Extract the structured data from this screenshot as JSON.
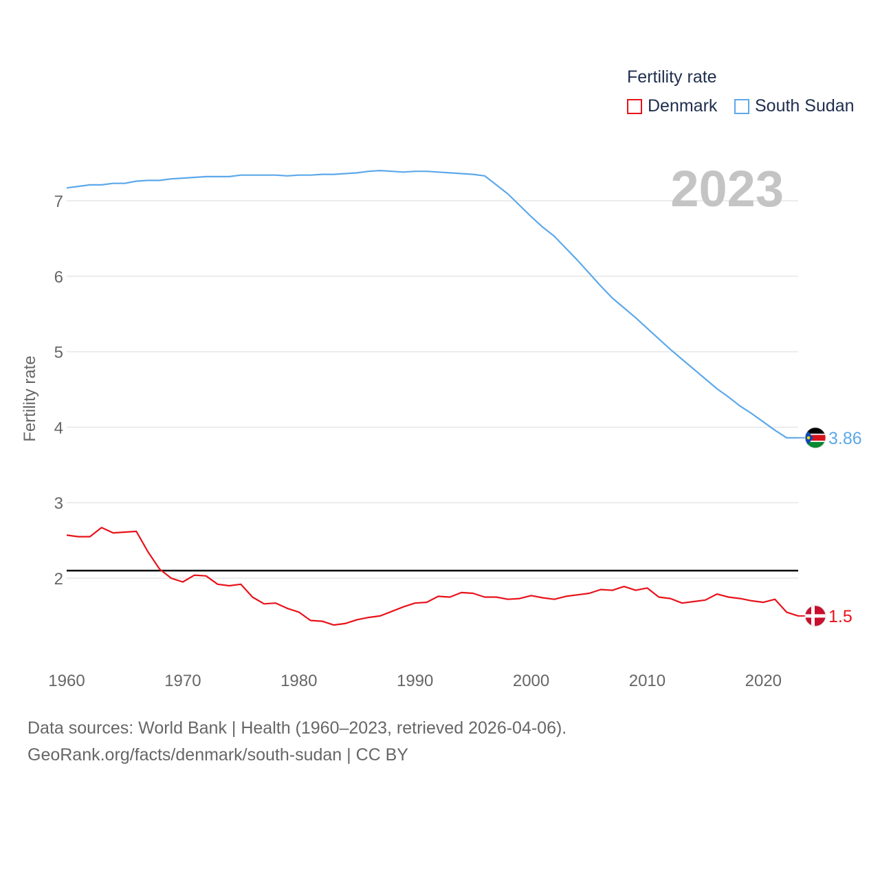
{
  "legend": {
    "title": "Fertility rate",
    "items": [
      {
        "label": "Denmark",
        "color": "#e8111a"
      },
      {
        "label": "South Sudan",
        "color": "#5ca8ea"
      }
    ]
  },
  "year_label": "2023",
  "source": {
    "line1": "Data sources: World Bank | Health (1960–2023, retrieved 2026-04-06).",
    "line2": "GeoRank.org/facts/denmark/south-sudan | CC BY"
  },
  "chart_data": {
    "type": "line",
    "title": "Fertility rate",
    "xlabel": "",
    "ylabel": "Fertility rate",
    "xlim": [
      1960,
      2023
    ],
    "ylim": [
      1,
      7.5
    ],
    "x_ticks": [
      1960,
      1970,
      1980,
      1990,
      2000,
      2010,
      2020
    ],
    "y_ticks": [
      2,
      3,
      4,
      5,
      6,
      7
    ],
    "reference_line": {
      "y": 2.1,
      "color": "#000000"
    },
    "x": [
      1960,
      1961,
      1962,
      1963,
      1964,
      1965,
      1966,
      1967,
      1968,
      1969,
      1970,
      1971,
      1972,
      1973,
      1974,
      1975,
      1976,
      1977,
      1978,
      1979,
      1980,
      1981,
      1982,
      1983,
      1984,
      1985,
      1986,
      1987,
      1988,
      1989,
      1990,
      1991,
      1992,
      1993,
      1994,
      1995,
      1996,
      1997,
      1998,
      1999,
      2000,
      2001,
      2002,
      2003,
      2004,
      2005,
      2006,
      2007,
      2008,
      2009,
      2010,
      2011,
      2012,
      2013,
      2014,
      2015,
      2016,
      2017,
      2018,
      2019,
      2020,
      2021,
      2022,
      2023
    ],
    "series": [
      {
        "name": "Denmark",
        "color": "#e8111a",
        "end_label": "1.5",
        "values": [
          2.57,
          2.55,
          2.55,
          2.67,
          2.6,
          2.61,
          2.62,
          2.35,
          2.12,
          2.0,
          1.95,
          2.04,
          2.03,
          1.92,
          1.9,
          1.92,
          1.75,
          1.66,
          1.67,
          1.6,
          1.55,
          1.44,
          1.43,
          1.38,
          1.4,
          1.45,
          1.48,
          1.5,
          1.56,
          1.62,
          1.67,
          1.68,
          1.76,
          1.75,
          1.81,
          1.8,
          1.75,
          1.75,
          1.72,
          1.73,
          1.77,
          1.74,
          1.72,
          1.76,
          1.78,
          1.8,
          1.85,
          1.84,
          1.89,
          1.84,
          1.87,
          1.75,
          1.73,
          1.67,
          1.69,
          1.71,
          1.79,
          1.75,
          1.73,
          1.7,
          1.68,
          1.72,
          1.55,
          1.5
        ]
      },
      {
        "name": "South Sudan",
        "color": "#5ca8ea",
        "end_label": "3.86",
        "values": [
          7.17,
          7.19,
          7.21,
          7.21,
          7.23,
          7.23,
          7.26,
          7.27,
          7.27,
          7.29,
          7.3,
          7.31,
          7.32,
          7.32,
          7.32,
          7.34,
          7.34,
          7.34,
          7.34,
          7.33,
          7.34,
          7.34,
          7.35,
          7.35,
          7.36,
          7.37,
          7.39,
          7.4,
          7.39,
          7.38,
          7.39,
          7.39,
          7.38,
          7.37,
          7.36,
          7.35,
          7.33,
          7.21,
          7.09,
          6.94,
          6.79,
          6.65,
          6.53,
          6.37,
          6.21,
          6.04,
          5.87,
          5.71,
          5.58,
          5.45,
          5.31,
          5.17,
          5.03,
          4.9,
          4.77,
          4.64,
          4.51,
          4.4,
          4.28,
          4.18,
          4.07,
          3.96,
          3.86,
          3.86
        ]
      }
    ]
  }
}
